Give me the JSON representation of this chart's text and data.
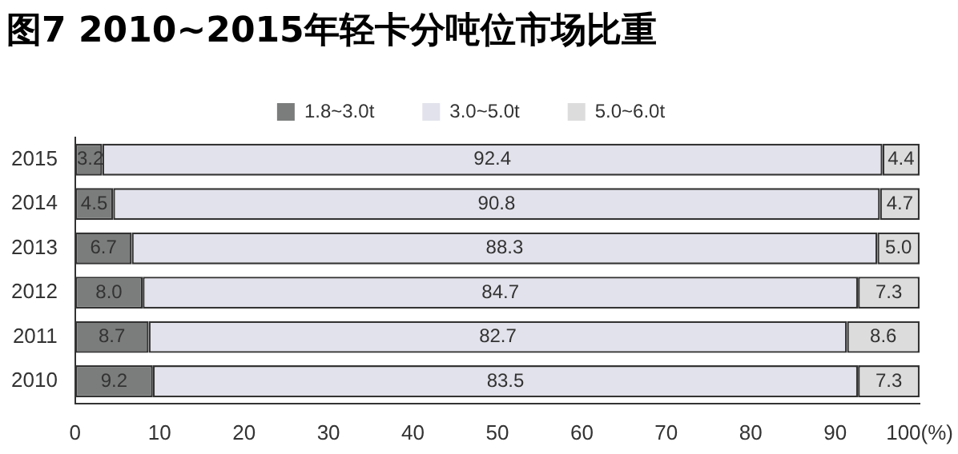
{
  "chart_data": {
    "type": "bar",
    "title": "图7  2010~2015年轻卡分吨位市场比重",
    "orientation": "horizontal",
    "stacked": true,
    "categories": [
      "2015",
      "2014",
      "2013",
      "2012",
      "2011",
      "2010"
    ],
    "series": [
      {
        "name": "1.8~3.0t",
        "color": "#7b7d7c",
        "values": [
          3.2,
          4.5,
          6.7,
          8.0,
          8.7,
          9.2
        ],
        "value_labels": [
          "3.2",
          "4.5",
          "6.7",
          "8.0",
          "8.7",
          "9.2"
        ]
      },
      {
        "name": "3.0~5.0t",
        "color": "#e2e2ec",
        "values": [
          92.4,
          90.8,
          88.3,
          84.7,
          82.7,
          83.5
        ],
        "value_labels": [
          "92.4",
          "90.8",
          "88.3",
          "84.7",
          "82.7",
          "83.5"
        ]
      },
      {
        "name": "5.0~6.0t",
        "color": "#dcdcdc",
        "values": [
          4.4,
          4.7,
          5.0,
          7.3,
          8.6,
          7.3
        ],
        "value_labels": [
          "4.4",
          "4.7",
          "5.0",
          "7.3",
          "8.6",
          "7.3"
        ]
      }
    ],
    "xlim": [
      0,
      100
    ],
    "xticks": [
      0,
      10,
      20,
      30,
      40,
      50,
      60,
      70,
      80,
      90,
      {
        "value": 100,
        "label": "100(%)"
      }
    ],
    "legend": "top",
    "grid": false
  }
}
